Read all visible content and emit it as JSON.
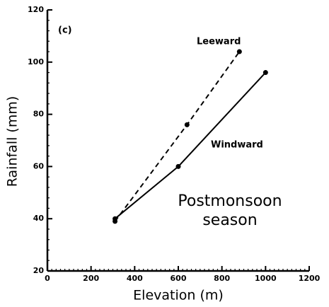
{
  "chart_data": {
    "type": "line",
    "panel_label": "(c)",
    "xlabel": "Elevation (m)",
    "ylabel": "Rainfall (mm)",
    "annotation": [
      "Postmonsoon",
      "season"
    ],
    "series": [
      {
        "name": "Leeward",
        "color": "#000",
        "dash": true,
        "x": [
          310,
          640,
          880
        ],
        "values": [
          39,
          76,
          104
        ]
      },
      {
        "name": "Windward",
        "color": "#000",
        "dash": false,
        "x": [
          310,
          600,
          1000
        ],
        "values": [
          40,
          60,
          96
        ]
      }
    ],
    "xlim": [
      0,
      1200
    ],
    "xticks": [
      0,
      200,
      400,
      600,
      800,
      1000,
      1200
    ],
    "ylim": [
      20,
      120
    ],
    "yticks": [
      20,
      40,
      60,
      80,
      100,
      120
    ]
  }
}
